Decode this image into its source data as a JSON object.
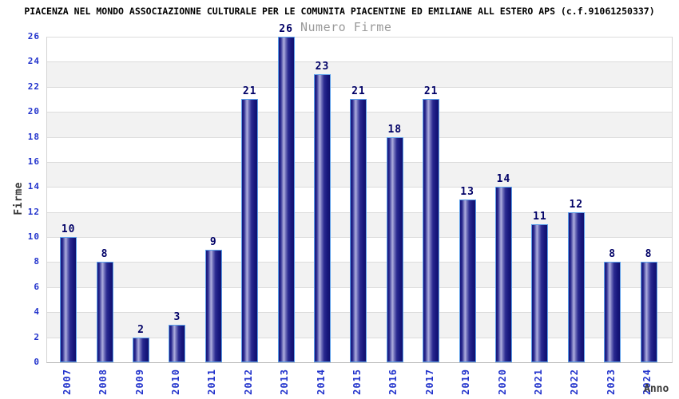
{
  "chart_data": {
    "type": "bar",
    "title": "PIACENZA NEL MONDO ASSOCIAZIONNE CULTURALE PER LE COMUNITA PIACENTINE ED EMILIANE ALL ESTERO APS (c.f.91061250337)",
    "subtitle": "Numero Firme",
    "xlabel": "Anno",
    "ylabel": "Firme",
    "categories": [
      "2007",
      "2008",
      "2009",
      "2010",
      "2011",
      "2012",
      "2013",
      "2014",
      "2015",
      "2016",
      "2017",
      "2019",
      "2020",
      "2021",
      "2022",
      "2023",
      "2024"
    ],
    "values": [
      10,
      8,
      2,
      3,
      9,
      21,
      26,
      23,
      21,
      18,
      21,
      13,
      14,
      11,
      12,
      8,
      8
    ],
    "ylim": [
      0,
      26
    ],
    "ytick_step": 2,
    "grid": true,
    "legend": "none",
    "colors": {
      "background": "#ffffff",
      "title": "#000000",
      "subtitle": "#9a9a9a",
      "tick_label": "#2233cc",
      "value_label": "#000066",
      "axis_title": "#3a3a3a",
      "band": "#f2f2f2",
      "gridline": "#dcdcdc",
      "plot_border": "#d4d4d4",
      "bar_border": "#5da0ea",
      "bar_dark": "#16167c",
      "bar_light": "#aeaede"
    }
  }
}
